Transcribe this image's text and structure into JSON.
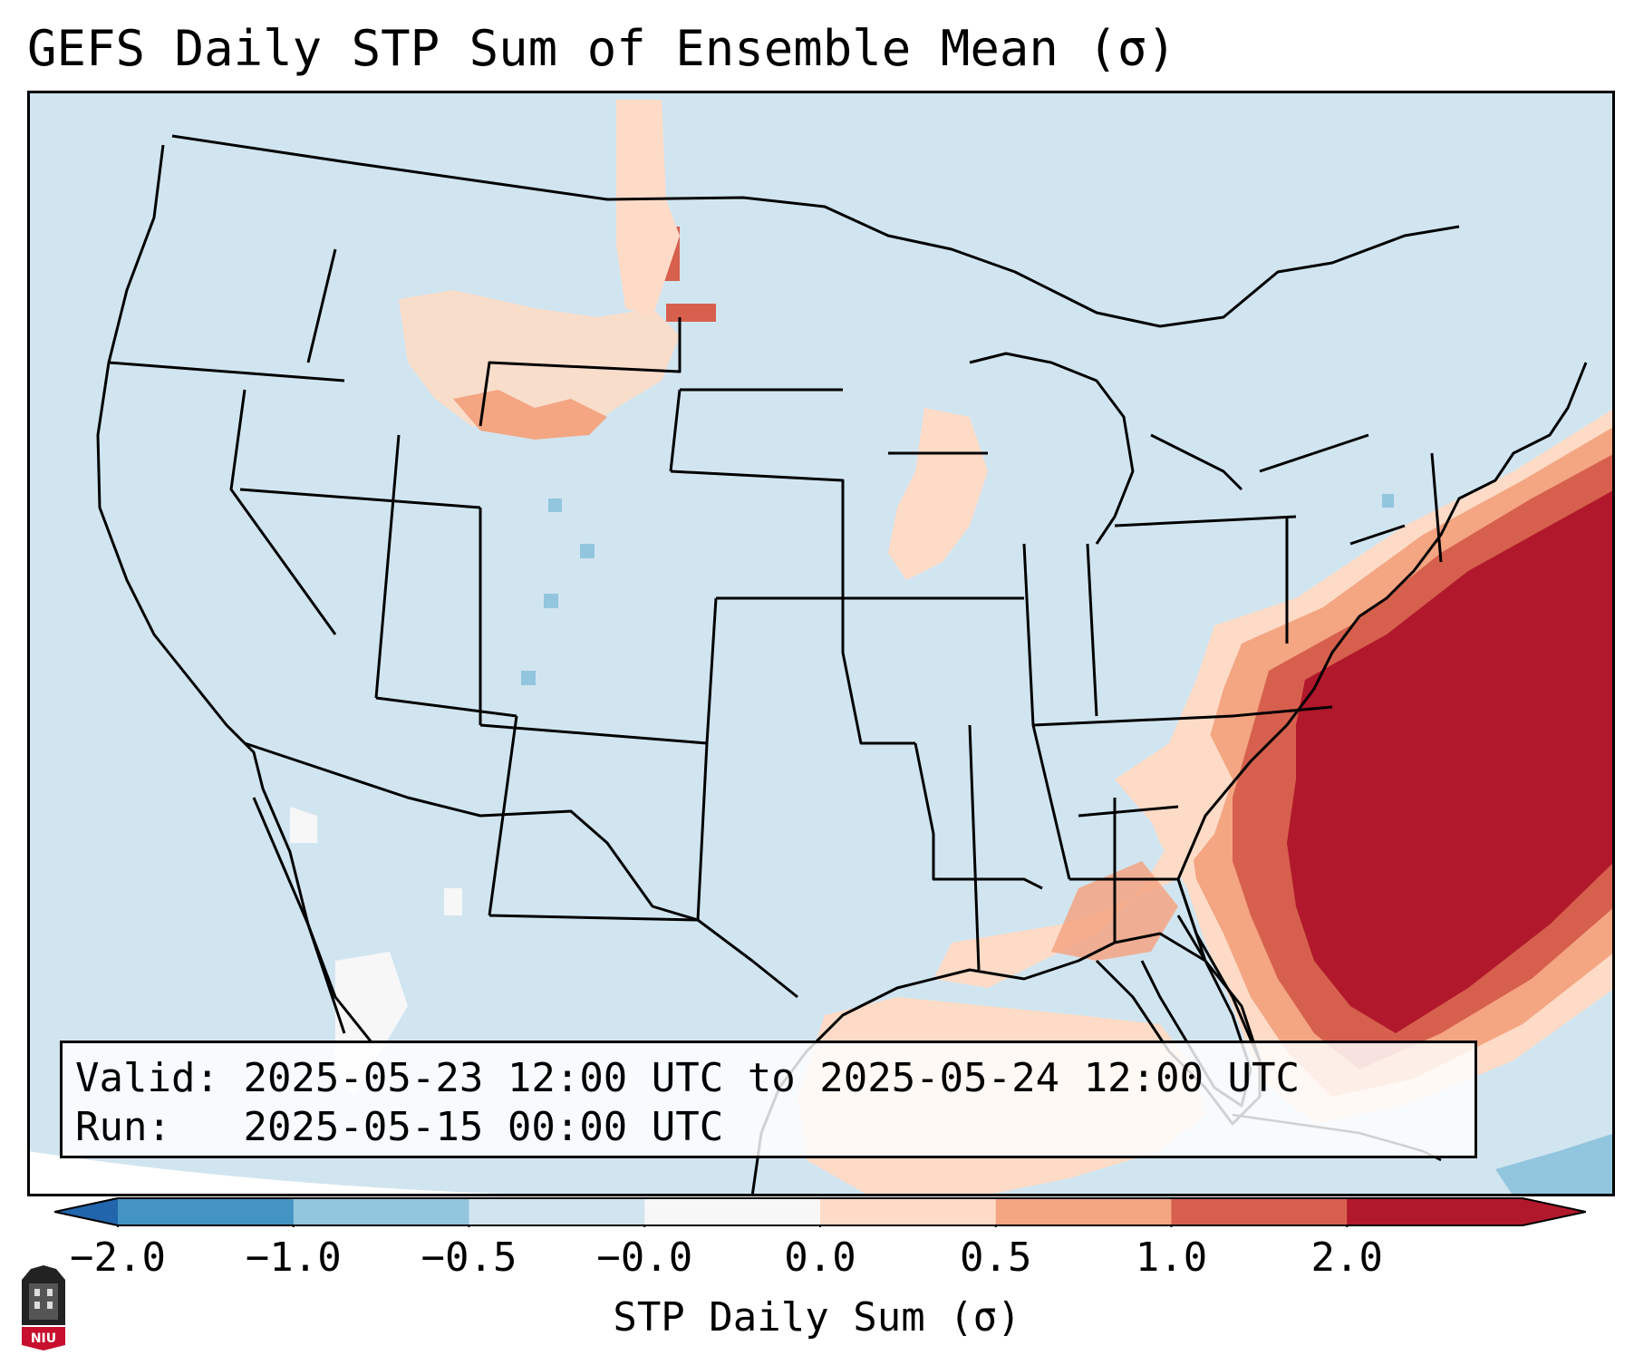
{
  "title": "GEFS Daily STP Sum of Ensemble Mean (σ)",
  "info": {
    "valid_label": "Valid:",
    "valid_value": "2025-05-23 12:00 UTC to 2025-05-24 12:00 UTC",
    "run_label": "Run:",
    "run_value": "2025-05-15 00:00 UTC"
  },
  "colorbar": {
    "label": "STP Daily Sum (σ)",
    "ticks": [
      "−2.0",
      "−1.0",
      "−0.5",
      "−0.0",
      "0.0",
      "0.5",
      "1.0",
      "2.0"
    ],
    "bin_colors": [
      "#4393c3",
      "#92c5de",
      "#d1e5f0",
      "#f7f7f7",
      "#fddbc7",
      "#f4a582",
      "#d6604d",
      "#b2182b"
    ],
    "extend_low_color": "#2166ac",
    "extend_high_color": "#b2182b"
  },
  "map": {
    "background_color": "#d1e5f0",
    "border_color": "#000000",
    "highest_anomaly_region": "Western Atlantic off Southeast U.S. coast",
    "logo_text": "NIU"
  }
}
